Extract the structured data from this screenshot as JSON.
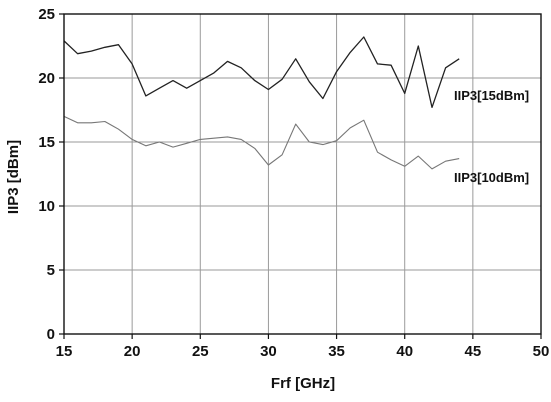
{
  "chart_data": {
    "type": "line",
    "title": "",
    "xlabel": "Frf [GHz]",
    "ylabel": "IIP3 [dBm]",
    "xlim": [
      15,
      50
    ],
    "ylim": [
      0,
      25
    ],
    "x_ticks": [
      15,
      20,
      25,
      30,
      35,
      40,
      45,
      50
    ],
    "y_ticks": [
      0,
      5,
      10,
      15,
      20,
      25
    ],
    "grid": true,
    "legend": "inline labels at right of lines",
    "series": [
      {
        "name": "IIP3[15dBm]",
        "color": "#222222",
        "x": [
          15,
          16,
          17,
          18,
          19,
          20,
          21,
          22,
          23,
          24,
          25,
          26,
          27,
          28,
          29,
          30,
          31,
          32,
          33,
          34,
          35,
          36,
          37,
          38,
          39,
          40,
          41,
          42,
          43,
          44
        ],
        "y": [
          22.9,
          21.9,
          22.1,
          22.4,
          22.6,
          21.1,
          18.6,
          19.2,
          19.8,
          19.2,
          19.8,
          20.4,
          21.3,
          20.8,
          19.8,
          19.1,
          19.9,
          21.5,
          19.7,
          18.4,
          20.5,
          22.0,
          23.2,
          21.1,
          21.0,
          18.8,
          22.5,
          17.7,
          20.8,
          21.5
        ]
      },
      {
        "name": "IIP3[10dBm]",
        "color": "#777777",
        "x": [
          15,
          16,
          17,
          18,
          19,
          20,
          21,
          22,
          23,
          24,
          25,
          26,
          27,
          28,
          29,
          30,
          31,
          32,
          33,
          34,
          35,
          36,
          37,
          38,
          39,
          40,
          41,
          42,
          43,
          44
        ],
        "y": [
          17.0,
          16.5,
          16.5,
          16.6,
          16.0,
          15.2,
          14.7,
          15.0,
          14.6,
          14.9,
          15.2,
          15.3,
          15.4,
          15.2,
          14.5,
          13.2,
          14.0,
          16.4,
          15.0,
          14.8,
          15.1,
          16.1,
          16.7,
          14.2,
          13.6,
          13.1,
          13.9,
          12.9,
          13.5,
          13.7
        ]
      }
    ]
  }
}
